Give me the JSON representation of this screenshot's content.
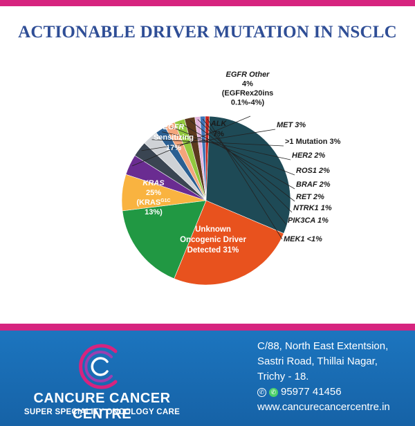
{
  "header": {
    "title": "ACTIONABLE DRIVER MUTATION IN NSCLC"
  },
  "chart_data": {
    "type": "pie",
    "title": "ACTIONABLE DRIVER MUTATION IN NSCLC",
    "slices": [
      {
        "id": "egfr-other",
        "label_lines": [
          "EGFR Other",
          "4%",
          "(EGFRex20ins",
          "0.1%-4%)"
        ],
        "value": 4,
        "color": "#6a2c91"
      },
      {
        "id": "met",
        "label_lines": [
          "MET 3%"
        ],
        "value": 3,
        "color": "#3a4552"
      },
      {
        "id": "gt1-mutation",
        "label_lines": [
          ">1 Mutation 3%"
        ],
        "value": 3,
        "color": "#cfd2d6"
      },
      {
        "id": "her2",
        "label_lines": [
          "HER2 2%"
        ],
        "value": 2,
        "color": "#2b5f92"
      },
      {
        "id": "ros1",
        "label_lines": [
          "ROS1 2%"
        ],
        "value": 2,
        "color": "#f4a57c"
      },
      {
        "id": "braf",
        "label_lines": [
          "BRAF 2%"
        ],
        "value": 2,
        "color": "#92c83e"
      },
      {
        "id": "ret",
        "label_lines": [
          "RET 2%"
        ],
        "value": 2,
        "color": "#5c3a1e"
      },
      {
        "id": "ntrk1",
        "label_lines": [
          "NTRK1 1%"
        ],
        "value": 1,
        "color": "#e4b5de"
      },
      {
        "id": "pik3ca",
        "label_lines": [
          "PIK3CA 1%"
        ],
        "value": 1,
        "color": "#3e74b8"
      },
      {
        "id": "mek1",
        "label_lines": [
          "MEK1 <1%"
        ],
        "value": 0.8,
        "color": "#c4231e"
      },
      {
        "id": "unknown",
        "label_lines": [
          "Unknown",
          "Oncogenic Driver",
          "Detected 31%"
        ],
        "value": 31,
        "color": "#1e4a56"
      },
      {
        "id": "kras",
        "label_lines": [
          "KRAS",
          "25%",
          "(KRAS",
          "13%)"
        ],
        "value": 25,
        "color": "#e8521e"
      },
      {
        "id": "egfr-sensitizing",
        "label_lines": [
          "EGFR",
          "Sensitizing",
          "17%"
        ],
        "value": 17,
        "color": "#219843"
      },
      {
        "id": "alk",
        "label_lines": [
          "ALK",
          "7%"
        ],
        "value": 7,
        "color": "#f9b340"
      }
    ],
    "kras_superscript": "G1C",
    "legend": "none"
  },
  "footer": {
    "brand_name": "CANCURE CANCER CENTRE",
    "tagline": "SUPER SPECIALITY ONCOLOGY CARE",
    "address_lines": [
      "C/88, North East Extentsion,",
      "Sastri Road, Thillai Nagar,",
      "Trichy - 18."
    ],
    "phone": "95977 41456",
    "website": "www.cancurecancercentre.in",
    "colors": {
      "footer_bg": "#1c75bf",
      "accent": "#d6247f"
    }
  }
}
